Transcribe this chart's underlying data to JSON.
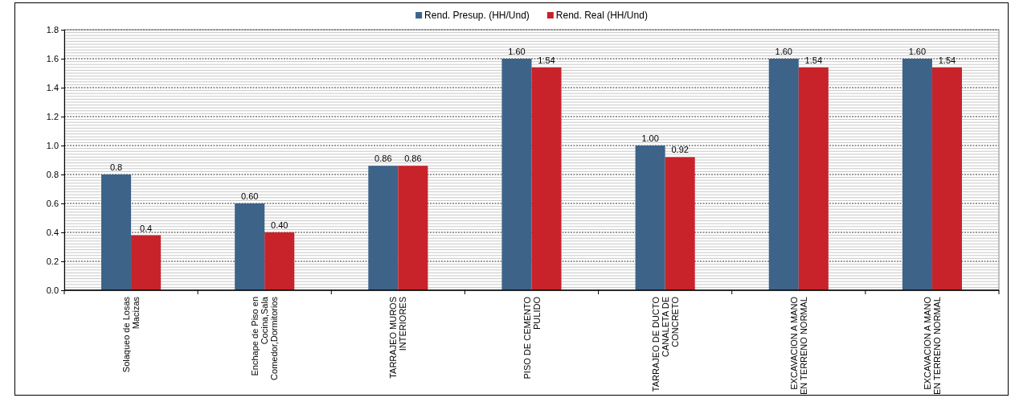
{
  "chart_data": {
    "type": "bar",
    "categories": [
      "Solaqueo de Losas\nMacizas",
      "Enchape de Piso en\nCocina,Sala\nComedor,Dormitorios",
      "TARRAJEO MUROS\nINTERIORES",
      "PISO DE CEMENTO\nPULIDO",
      "TARRAJEO DE DUCTO\nCANALETA DE\nCONCRETO",
      "EXCAVACION A MANO\nEN TERRENO NORMAL",
      "EXCAVACION A MANO\nEN TERRENO NORMAL"
    ],
    "series": [
      {
        "name": "Rend. Presup. (HH/Und)",
        "color": "#3d6389",
        "values": [
          0.8,
          0.6,
          0.86,
          1.6,
          1.0,
          1.6,
          1.6
        ],
        "value_labels": [
          "0.8",
          "0.60",
          "0.86",
          "1.60",
          "1.00",
          "1.60",
          "1.60"
        ]
      },
      {
        "name": "Rend. Real (HH/Und)",
        "color": "#c8232a",
        "values": [
          0.38,
          0.4,
          0.86,
          1.54,
          0.92,
          1.54,
          1.54
        ],
        "value_labels": [
          "0.4",
          "0.40",
          "0.86",
          "1.54",
          "0.92",
          "1.54",
          "1.54"
        ]
      }
    ],
    "ylim": [
      0,
      1.8
    ],
    "yticks": [
      "0.0",
      0.2,
      0.4,
      0.6,
      0.8,
      "1.0",
      1.2,
      1.4,
      1.6,
      1.8
    ],
    "grid": "y",
    "legend": "top"
  }
}
